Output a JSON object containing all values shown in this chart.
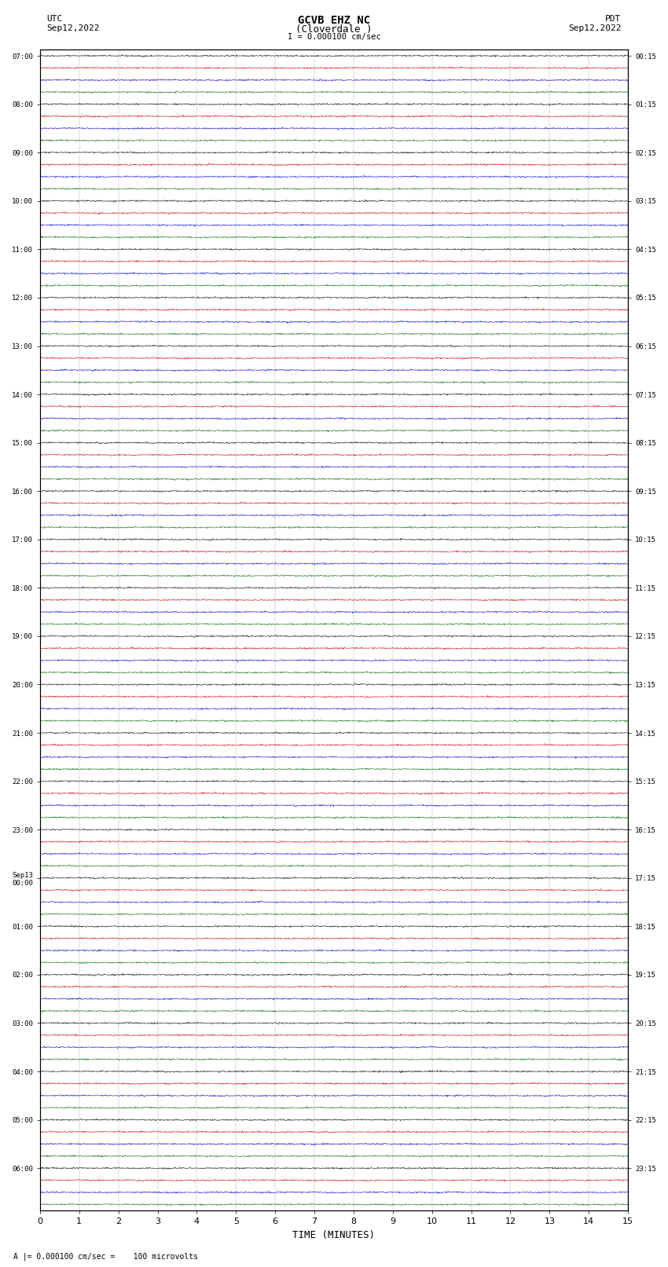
{
  "title_line1": "GCVB EHZ NC",
  "title_line2": "(Cloverdale )",
  "scale_label": "I = 0.000100 cm/sec",
  "left_label_line1": "UTC",
  "left_label_line2": "Sep12,2022",
  "right_label_line1": "PDT",
  "right_label_line2": "Sep12,2022",
  "bottom_label": "A |= 0.000100 cm/sec =    100 microvolts",
  "xlabel": "TIME (MINUTES)",
  "bg_color": "#ffffff",
  "trace_colors": [
    "#000000",
    "#cc0000",
    "#0000cc",
    "#006600"
  ],
  "utc_labels_sparse": [
    "07:00",
    "08:00",
    "09:00",
    "10:00",
    "11:00",
    "12:00",
    "13:00",
    "14:00",
    "15:00",
    "16:00",
    "17:00",
    "18:00",
    "19:00",
    "20:00",
    "21:00",
    "22:00",
    "23:00",
    "Sep13\n00:00",
    "01:00",
    "02:00",
    "03:00",
    "04:00",
    "05:00",
    "06:00"
  ],
  "pdt_labels_sparse": [
    "00:15",
    "01:15",
    "02:15",
    "03:15",
    "04:15",
    "05:15",
    "06:15",
    "07:15",
    "08:15",
    "09:15",
    "10:15",
    "11:15",
    "12:15",
    "13:15",
    "14:15",
    "15:15",
    "16:15",
    "17:15",
    "18:15",
    "19:15",
    "20:15",
    "21:15",
    "22:15",
    "23:15"
  ],
  "num_groups": 24,
  "traces_per_group": 4,
  "time_min": 0,
  "time_max": 15,
  "amplitude_scale": 0.32,
  "noise_scale": 0.1,
  "seed": 42
}
